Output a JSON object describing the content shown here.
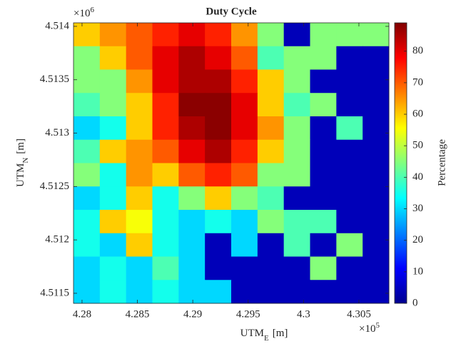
{
  "chart_data": {
    "type": "heatmap",
    "title": "Duty Cycle",
    "xlabel": {
      "base": "UTM",
      "sub": "E",
      "unit": "[m]"
    },
    "ylabel": {
      "base": "UTM",
      "sub": "N",
      "unit": "[m]"
    },
    "x_multiplier": {
      "base": "×10",
      "exponent": 5
    },
    "y_multiplier": {
      "base": "×10",
      "exponent": 6
    },
    "xlim": [
      4.27923,
      4.30771
    ],
    "xticks": [
      4.28,
      4.285,
      4.29,
      4.295,
      4.3,
      4.305
    ],
    "ylim": [
      4.511406,
      4.514033
    ],
    "yticks": [
      4.5115,
      4.512,
      4.5125,
      4.513,
      4.5135,
      4.514
    ],
    "colorbar_label": "Percentage",
    "clim": [
      0,
      89
    ],
    "cticks": [
      0,
      10,
      20,
      30,
      40,
      50,
      60,
      70,
      80
    ],
    "colormap": "jet",
    "values": [
      [
        60,
        65,
        70,
        75,
        80,
        75,
        65,
        45,
        5,
        45,
        45,
        45
      ],
      [
        45,
        60,
        70,
        80,
        85,
        80,
        70,
        40,
        45,
        45,
        5,
        5
      ],
      [
        45,
        45,
        65,
        80,
        85,
        85,
        75,
        60,
        45,
        5,
        5,
        5
      ],
      [
        40,
        45,
        60,
        75,
        88,
        88,
        80,
        60,
        40,
        45,
        5,
        5
      ],
      [
        30,
        35,
        60,
        75,
        85,
        88,
        80,
        65,
        45,
        5,
        40,
        5
      ],
      [
        40,
        60,
        65,
        70,
        80,
        85,
        75,
        60,
        45,
        5,
        5,
        5
      ],
      [
        45,
        35,
        65,
        60,
        70,
        75,
        70,
        45,
        45,
        5,
        5,
        5
      ],
      [
        30,
        35,
        60,
        35,
        45,
        60,
        45,
        40,
        5,
        5,
        5,
        5
      ],
      [
        35,
        60,
        55,
        35,
        30,
        35,
        30,
        45,
        40,
        40,
        5,
        5
      ],
      [
        35,
        30,
        60,
        35,
        30,
        5,
        30,
        5,
        40,
        5,
        45,
        5
      ],
      [
        30,
        35,
        30,
        40,
        30,
        5,
        5,
        5,
        5,
        45,
        5,
        5
      ],
      [
        30,
        35,
        30,
        35,
        30,
        30,
        5,
        5,
        5,
        5,
        5,
        5
      ]
    ]
  }
}
